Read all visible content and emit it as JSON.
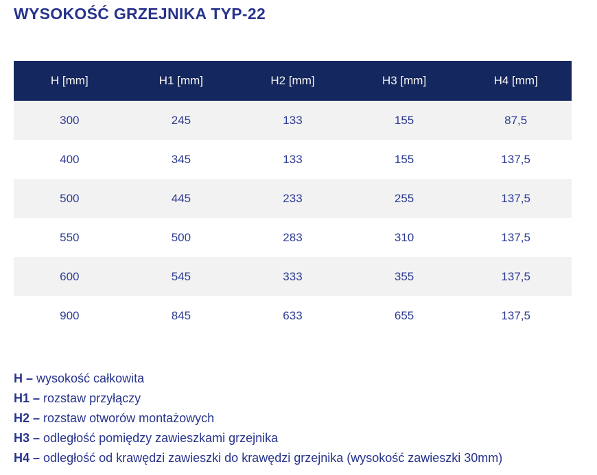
{
  "page": {
    "title": "WYSOKOŚĆ GRZEJNIKA TYP-22"
  },
  "table": {
    "columns": [
      "H [mm]",
      "H1 [mm]",
      "H2 [mm]",
      "H3 [mm]",
      "H4 [mm]"
    ],
    "rows": [
      [
        "300",
        "245",
        "133",
        "155",
        "87,5"
      ],
      [
        "400",
        "345",
        "133",
        "155",
        "137,5"
      ],
      [
        "500",
        "445",
        "233",
        "255",
        "137,5"
      ],
      [
        "550",
        "500",
        "283",
        "310",
        "137,5"
      ],
      [
        "600",
        "545",
        "333",
        "355",
        "137,5"
      ],
      [
        "900",
        "845",
        "633",
        "655",
        "137,5"
      ]
    ]
  },
  "legend": [
    {
      "label": "H –",
      "text": "wysokość całkowita"
    },
    {
      "label": "H1 –",
      "text": "rozstaw przyłączy"
    },
    {
      "label": "H2 –",
      "text": "rozstaw otworów montażowych"
    },
    {
      "label": "H3 –",
      "text": "odległość pomiędzy zawieszkami grzejnika"
    },
    {
      "label": "H4 –",
      "text": "odległość od krawędzi zawieszki do krawędzi grzejnika (wysokość zawieszki 30mm)"
    }
  ],
  "colors": {
    "header_bg": "#14275E",
    "header_text": "#F7F5F2",
    "row_alt_bg": "#F2F2F2",
    "row_bg": "#FFFFFF",
    "data_text": "#2D3B94",
    "title_text": "#27338C",
    "legend_text": "#27338C"
  }
}
